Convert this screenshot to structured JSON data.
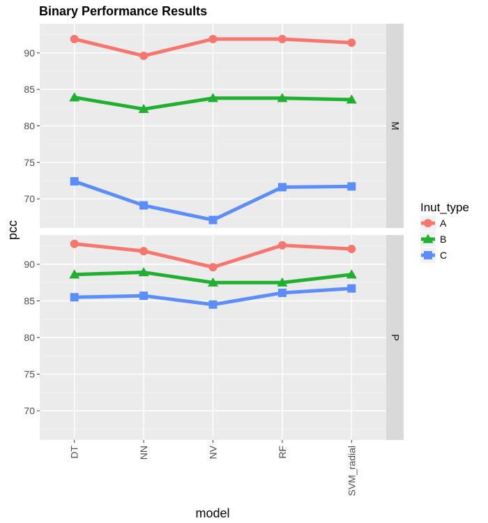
{
  "chart_data": {
    "type": "line",
    "title": "Binary Performance Results",
    "xlabel": "model",
    "ylabel": "pcc",
    "categories": [
      "DT",
      "NN",
      "NV",
      "RF",
      "SVM_radial"
    ],
    "ylim": [
      66,
      94
    ],
    "yticks": [
      70,
      75,
      80,
      85,
      90
    ],
    "grid": true,
    "legend": {
      "title": "Inut_type",
      "placement": "right",
      "entries": [
        "A",
        "B",
        "C"
      ]
    },
    "series_colors": {
      "A": "#F8766D",
      "B": "#1FB02F",
      "C": "#5B8DFB"
    },
    "series_markers": {
      "A": "circle",
      "B": "triangle",
      "C": "square"
    },
    "facets": [
      {
        "label": "M",
        "series": [
          {
            "name": "A",
            "values": [
              91.9,
              89.6,
              91.9,
              91.9,
              91.4
            ]
          },
          {
            "name": "B",
            "values": [
              83.9,
              82.3,
              83.8,
              83.8,
              83.6
            ]
          },
          {
            "name": "C",
            "values": [
              72.4,
              69.1,
              67.1,
              71.6,
              71.7
            ]
          }
        ]
      },
      {
        "label": "P",
        "series": [
          {
            "name": "A",
            "values": [
              92.8,
              91.8,
              89.6,
              92.6,
              92.1
            ]
          },
          {
            "name": "B",
            "values": [
              88.6,
              88.9,
              87.5,
              87.5,
              88.6
            ]
          },
          {
            "name": "C",
            "values": [
              85.5,
              85.7,
              84.5,
              86.1,
              86.7
            ]
          }
        ]
      }
    ]
  }
}
